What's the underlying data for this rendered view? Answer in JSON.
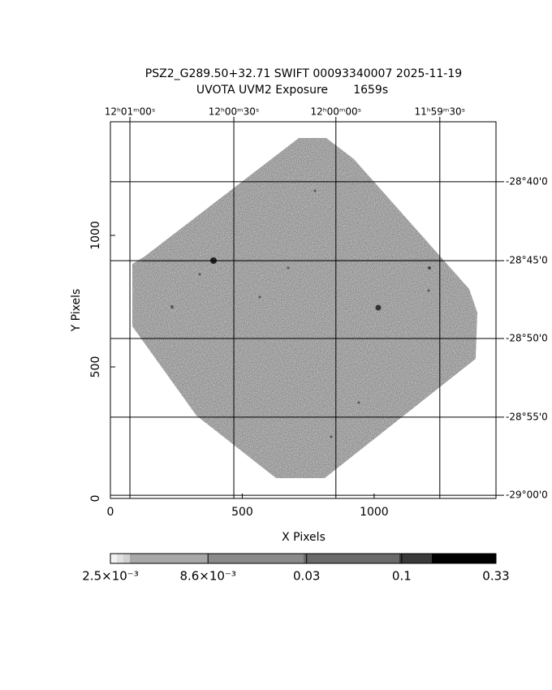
{
  "chart_data": {
    "type": "image",
    "title": "PSZ2_G289.50+32.71 SWIFT 00093340007 2025-11-19",
    "subtitle": "UVOTA UVM2 Exposure       1659s",
    "xlabel": "X Pixels",
    "ylabel": "Y Pixels",
    "xlim": [
      0,
      1462
    ],
    "ylim": [
      0,
      1432
    ],
    "xticks": [
      0,
      500,
      1000
    ],
    "yticks": [
      0,
      500,
      1000
    ],
    "ra_ticks": [
      {
        "value": 74,
        "label": "12ʰ01ᵐ00ˢ"
      },
      {
        "value": 468,
        "label": "12ʰ00ᵐ30ˢ"
      },
      {
        "value": 855,
        "label": "12ʰ00ᵐ00ˢ"
      },
      {
        "value": 1249,
        "label": "11ʰ59ᵐ30ˢ"
      }
    ],
    "dec_ticks": [
      {
        "value": 1204,
        "label": "-28°40'0"
      },
      {
        "value": 904,
        "label": "-28°45'0"
      },
      {
        "value": 608,
        "label": "-28°50'0"
      },
      {
        "value": 309,
        "label": "-28°55'0"
      },
      {
        "value": 12,
        "label": "-29°00'0"
      }
    ],
    "colorbar": {
      "log": true,
      "lim": [
        0.0025,
        0.33
      ],
      "ticks": [
        {
          "value": 0.0025,
          "label": "2.5×10⁻³"
        },
        {
          "value": 0.0086,
          "label": "8.6×10⁻³"
        },
        0.03,
        0.1,
        0.33
      ]
    },
    "grid": true
  }
}
